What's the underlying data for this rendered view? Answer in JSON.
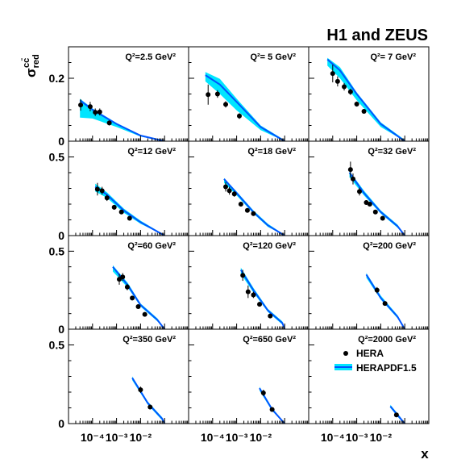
{
  "figure": {
    "title": "H1 and ZEUS",
    "xlabel": "x",
    "ylabel_main": "σ",
    "ylabel_sub": "red",
    "ylabel_sup": "cc̄"
  },
  "colors": {
    "band": "#00e5ff",
    "curve": "#0055ff",
    "points": "#000000"
  },
  "legend": {
    "position": "bottom-right panel",
    "entries": [
      {
        "label": "HERA",
        "kind": "marker"
      },
      {
        "label": "HERAPDF1.5",
        "kind": "band"
      }
    ]
  },
  "chart_data": [
    {
      "type": "scatter",
      "title": "Q²=2.5 GeV²",
      "q2": "2.5",
      "xlog": true,
      "xlim": [
        1e-05,
        1
      ],
      "ylim": [
        0,
        0.3
      ],
      "yticks": [
        0,
        0.2
      ],
      "ytick_labels": [
        "0",
        "0.2"
      ],
      "xtick_labels": [],
      "points": [
        {
          "x": 3.2e-05,
          "y": 0.115,
          "err": 0.018
        },
        {
          "x": 8e-05,
          "y": 0.11,
          "err": 0.015
        },
        {
          "x": 0.00013,
          "y": 0.092,
          "err": 0.012
        },
        {
          "x": 0.0002,
          "y": 0.093,
          "err": 0.011
        },
        {
          "x": 0.0005,
          "y": 0.058,
          "err": 0.008
        }
      ],
      "curve": [
        [
          3e-05,
          0.13
        ],
        [
          0.0001,
          0.1
        ],
        [
          0.001,
          0.055
        ],
        [
          0.01,
          0.018
        ],
        [
          0.1,
          0.0
        ]
      ],
      "band": [
        [
          3e-05,
          0.075,
          0.135
        ],
        [
          0.0001,
          0.072,
          0.104
        ],
        [
          0.001,
          0.045,
          0.058
        ],
        [
          0.01,
          0.015,
          0.02
        ],
        [
          0.1,
          0.0,
          0.002
        ]
      ]
    },
    {
      "type": "scatter",
      "title": "Q²= 5 GeV²",
      "q2": "5",
      "xlog": true,
      "xlim": [
        1e-05,
        1
      ],
      "ylim": [
        0,
        0.3
      ],
      "yticks": [
        0,
        0.2
      ],
      "ytick_labels": [],
      "xtick_labels": [],
      "points": [
        {
          "x": 6.5e-05,
          "y": 0.148,
          "err": 0.032
        },
        {
          "x": 0.00016,
          "y": 0.15,
          "err": 0.012
        },
        {
          "x": 0.00035,
          "y": 0.117,
          "err": 0.01
        },
        {
          "x": 0.0013,
          "y": 0.08,
          "err": 0.009
        }
      ],
      "curve": [
        [
          5e-05,
          0.21
        ],
        [
          0.0002,
          0.18
        ],
        [
          0.001,
          0.125
        ],
        [
          0.01,
          0.045
        ],
        [
          0.1,
          0.0
        ]
      ],
      "band": [
        [
          5e-05,
          0.19,
          0.22
        ],
        [
          0.0002,
          0.15,
          0.198
        ],
        [
          0.001,
          0.098,
          0.135
        ],
        [
          0.01,
          0.035,
          0.05
        ],
        [
          0.1,
          0.0,
          0.003
        ]
      ]
    },
    {
      "type": "scatter",
      "title": "Q²= 7 GeV²",
      "q2": "7",
      "xlog": true,
      "xlim": [
        1e-05,
        1
      ],
      "ylim": [
        0,
        0.3
      ],
      "yticks": [
        0,
        0.2
      ],
      "ytick_labels": [],
      "xtick_labels": [],
      "points": [
        {
          "x": 0.0001,
          "y": 0.215,
          "err": 0.028
        },
        {
          "x": 0.00016,
          "y": 0.19,
          "err": 0.016
        },
        {
          "x": 0.0003,
          "y": 0.173,
          "err": 0.012
        },
        {
          "x": 0.00055,
          "y": 0.157,
          "err": 0.01
        },
        {
          "x": 0.001,
          "y": 0.118,
          "err": 0.008
        },
        {
          "x": 0.002,
          "y": 0.095,
          "err": 0.007
        }
      ],
      "curve": [
        [
          6e-05,
          0.26
        ],
        [
          0.0002,
          0.225
        ],
        [
          0.001,
          0.15
        ],
        [
          0.01,
          0.055
        ],
        [
          0.1,
          0.0
        ]
      ],
      "band": [
        [
          6e-05,
          0.24,
          0.265
        ],
        [
          0.0002,
          0.2,
          0.235
        ],
        [
          0.001,
          0.13,
          0.155
        ],
        [
          0.01,
          0.045,
          0.06
        ],
        [
          0.1,
          0.0,
          0.004
        ]
      ]
    },
    {
      "type": "scatter",
      "title": "Q²=12 GeV²",
      "q2": "12",
      "xlog": true,
      "xlim": [
        1e-05,
        1
      ],
      "ylim": [
        0,
        0.6
      ],
      "yticks": [
        0,
        0.5
      ],
      "ytick_labels": [
        "0",
        "0.5"
      ],
      "xtick_labels": [],
      "points": [
        {
          "x": 0.00016,
          "y": 0.295,
          "err": 0.04
        },
        {
          "x": 0.00025,
          "y": 0.285,
          "err": 0.025
        },
        {
          "x": 0.0004,
          "y": 0.24,
          "err": 0.02
        },
        {
          "x": 0.0008,
          "y": 0.18,
          "err": 0.015
        },
        {
          "x": 0.0016,
          "y": 0.15,
          "err": 0.012
        },
        {
          "x": 0.0035,
          "y": 0.11,
          "err": 0.01
        }
      ],
      "curve": [
        [
          0.00013,
          0.31
        ],
        [
          0.0004,
          0.26
        ],
        [
          0.002,
          0.16
        ],
        [
          0.01,
          0.085
        ],
        [
          0.1,
          0.0
        ]
      ],
      "band": [
        [
          0.00013,
          0.28,
          0.33
        ],
        [
          0.0004,
          0.24,
          0.275
        ],
        [
          0.002,
          0.145,
          0.172
        ],
        [
          0.01,
          0.075,
          0.095
        ],
        [
          0.1,
          0.0,
          0.004
        ]
      ]
    },
    {
      "type": "scatter",
      "title": "Q²=18 GeV²",
      "q2": "18",
      "xlog": true,
      "xlim": [
        1e-05,
        1
      ],
      "ylim": [
        0,
        0.6
      ],
      "yticks": [
        0,
        0.5
      ],
      "ytick_labels": [],
      "xtick_labels": [],
      "points": [
        {
          "x": 0.00035,
          "y": 0.31,
          "err": 0.03
        },
        {
          "x": 0.0005,
          "y": 0.285,
          "err": 0.025
        },
        {
          "x": 0.0008,
          "y": 0.265,
          "err": 0.018
        },
        {
          "x": 0.0015,
          "y": 0.2,
          "err": 0.015
        },
        {
          "x": 0.0028,
          "y": 0.16,
          "err": 0.012
        },
        {
          "x": 0.005,
          "y": 0.14,
          "err": 0.01
        }
      ],
      "curve": [
        [
          0.0003,
          0.36
        ],
        [
          0.001,
          0.27
        ],
        [
          0.005,
          0.15
        ],
        [
          0.02,
          0.065
        ],
        [
          0.1,
          0.0
        ]
      ],
      "band": [
        [
          0.0003,
          0.335,
          0.365
        ],
        [
          0.001,
          0.255,
          0.28
        ],
        [
          0.005,
          0.14,
          0.16
        ],
        [
          0.02,
          0.055,
          0.075
        ],
        [
          0.1,
          0.0,
          0.004
        ]
      ]
    },
    {
      "type": "scatter",
      "title": "Q²=32 GeV²",
      "q2": "32",
      "xlog": true,
      "xlim": [
        1e-05,
        1
      ],
      "ylim": [
        0,
        0.6
      ],
      "yticks": [
        0,
        0.5
      ],
      "ytick_labels": [],
      "xtick_labels": [],
      "points": [
        {
          "x": 0.00055,
          "y": 0.42,
          "err": 0.05
        },
        {
          "x": 0.0007,
          "y": 0.36,
          "err": 0.035
        },
        {
          "x": 0.0013,
          "y": 0.28,
          "err": 0.025
        },
        {
          "x": 0.0025,
          "y": 0.21,
          "err": 0.015
        },
        {
          "x": 0.0035,
          "y": 0.2,
          "err": 0.012
        },
        {
          "x": 0.006,
          "y": 0.15,
          "err": 0.01
        },
        {
          "x": 0.012,
          "y": 0.11,
          "err": 0.009
        }
      ],
      "curve": [
        [
          0.0005,
          0.4
        ],
        [
          0.002,
          0.27
        ],
        [
          0.01,
          0.15
        ],
        [
          0.05,
          0.06
        ],
        [
          0.1,
          0.0
        ]
      ],
      "band": [
        [
          0.0005,
          0.37,
          0.41
        ],
        [
          0.002,
          0.255,
          0.285
        ],
        [
          0.01,
          0.14,
          0.16
        ],
        [
          0.05,
          0.05,
          0.07
        ],
        [
          0.1,
          0.0,
          0.004
        ]
      ]
    },
    {
      "type": "scatter",
      "title": "Q²=60 GeV²",
      "q2": "60",
      "xlog": true,
      "xlim": [
        1e-05,
        1
      ],
      "ylim": [
        0,
        0.6
      ],
      "yticks": [
        0,
        0.5
      ],
      "ytick_labels": [
        "0",
        "0.5"
      ],
      "xtick_labels": [],
      "points": [
        {
          "x": 0.0013,
          "y": 0.32,
          "err": 0.035
        },
        {
          "x": 0.0018,
          "y": 0.335,
          "err": 0.025
        },
        {
          "x": 0.0028,
          "y": 0.27,
          "err": 0.02
        },
        {
          "x": 0.0045,
          "y": 0.2,
          "err": 0.015
        },
        {
          "x": 0.008,
          "y": 0.145,
          "err": 0.012
        },
        {
          "x": 0.015,
          "y": 0.095,
          "err": 0.009
        }
      ],
      "curve": [
        [
          0.0007,
          0.4
        ],
        [
          0.003,
          0.28
        ],
        [
          0.01,
          0.155
        ],
        [
          0.05,
          0.06
        ],
        [
          0.1,
          0.0
        ]
      ],
      "band": [
        [
          0.0007,
          0.37,
          0.41
        ],
        [
          0.003,
          0.265,
          0.295
        ],
        [
          0.01,
          0.145,
          0.165
        ],
        [
          0.05,
          0.05,
          0.07
        ],
        [
          0.1,
          0.0,
          0.004
        ]
      ]
    },
    {
      "type": "scatter",
      "title": "Q²=120 GeV²",
      "q2": "120",
      "xlog": true,
      "xlim": [
        1e-05,
        1
      ],
      "ylim": [
        0,
        0.6
      ],
      "yticks": [
        0,
        0.5
      ],
      "ytick_labels": [],
      "xtick_labels": [],
      "points": [
        {
          "x": 0.0018,
          "y": 0.345,
          "err": 0.035
        },
        {
          "x": 0.003,
          "y": 0.24,
          "err": 0.04
        },
        {
          "x": 0.005,
          "y": 0.22,
          "err": 0.02
        },
        {
          "x": 0.009,
          "y": 0.16,
          "err": 0.015
        },
        {
          "x": 0.025,
          "y": 0.085,
          "err": 0.009
        }
      ],
      "curve": [
        [
          0.0015,
          0.38
        ],
        [
          0.005,
          0.25
        ],
        [
          0.02,
          0.12
        ],
        [
          0.08,
          0.04
        ],
        [
          0.1,
          0.0
        ]
      ],
      "band": [
        [
          0.0015,
          0.355,
          0.395
        ],
        [
          0.005,
          0.235,
          0.265
        ],
        [
          0.02,
          0.11,
          0.13
        ],
        [
          0.08,
          0.03,
          0.05
        ],
        [
          0.1,
          0.0,
          0.004
        ]
      ]
    },
    {
      "type": "scatter",
      "title": "Q²=200 GeV²",
      "q2": "200",
      "xlog": true,
      "xlim": [
        1e-05,
        1
      ],
      "ylim": [
        0,
        0.6
      ],
      "yticks": [
        0,
        0.5
      ],
      "ytick_labels": [],
      "xtick_labels": [],
      "points": [
        {
          "x": 0.007,
          "y": 0.25,
          "err": 0.02
        },
        {
          "x": 0.015,
          "y": 0.165,
          "err": 0.012
        }
      ],
      "curve": [
        [
          0.0025,
          0.35
        ],
        [
          0.01,
          0.2
        ],
        [
          0.05,
          0.08
        ],
        [
          0.1,
          0.0
        ]
      ],
      "band": [
        [
          0.0025,
          0.33,
          0.36
        ],
        [
          0.01,
          0.19,
          0.215
        ],
        [
          0.05,
          0.07,
          0.09
        ],
        [
          0.1,
          0.0,
          0.004
        ]
      ]
    },
    {
      "type": "scatter",
      "title": "Q²=350 GeV²",
      "q2": "350",
      "xlog": true,
      "xlim": [
        1e-05,
        1
      ],
      "ylim": [
        0,
        0.6
      ],
      "yticks": [
        0,
        0.5
      ],
      "ytick_labels": [
        "0",
        "0.5"
      ],
      "xtick_labels": [
        "10⁻⁴",
        "10⁻³",
        "10⁻²"
      ],
      "points": [
        {
          "x": 0.01,
          "y": 0.215,
          "err": 0.02
        },
        {
          "x": 0.025,
          "y": 0.105,
          "err": 0.01
        }
      ],
      "curve": [
        [
          0.0045,
          0.29
        ],
        [
          0.02,
          0.13
        ],
        [
          0.08,
          0.03
        ],
        [
          0.1,
          0.0
        ]
      ],
      "band": [
        [
          0.0045,
          0.275,
          0.3
        ],
        [
          0.02,
          0.12,
          0.14
        ],
        [
          0.08,
          0.02,
          0.04
        ],
        [
          0.1,
          0.0,
          0.004
        ]
      ]
    },
    {
      "type": "scatter",
      "title": "Q²=650 GeV²",
      "q2": "650",
      "xlog": true,
      "xlim": [
        1e-05,
        1
      ],
      "ylim": [
        0,
        0.6
      ],
      "yticks": [
        0,
        0.5
      ],
      "ytick_labels": [],
      "xtick_labels": [
        "10⁻⁴",
        "10⁻³",
        "10⁻²"
      ],
      "points": [
        {
          "x": 0.013,
          "y": 0.195,
          "err": 0.02
        },
        {
          "x": 0.03,
          "y": 0.09,
          "err": 0.01
        }
      ],
      "curve": [
        [
          0.009,
          0.225
        ],
        [
          0.03,
          0.09
        ],
        [
          0.1,
          0.0
        ]
      ],
      "band": [
        [
          0.009,
          0.21,
          0.235
        ],
        [
          0.03,
          0.08,
          0.1
        ],
        [
          0.1,
          0.0,
          0.004
        ]
      ]
    },
    {
      "type": "scatter",
      "title": "Q²=2000 GeV²",
      "q2": "2000",
      "xlog": true,
      "xlim": [
        1e-05,
        1
      ],
      "ylim": [
        0,
        0.6
      ],
      "yticks": [
        0,
        0.5
      ],
      "ytick_labels": [],
      "xtick_labels": [
        "10⁻⁴",
        "10⁻³",
        "10⁻²"
      ],
      "points": [
        {
          "x": 0.045,
          "y": 0.055,
          "err": 0.008
        }
      ],
      "curve": [
        [
          0.025,
          0.11
        ],
        [
          0.06,
          0.04
        ],
        [
          0.1,
          0.0
        ]
      ],
      "band": [
        [
          0.025,
          0.1,
          0.12
        ],
        [
          0.06,
          0.03,
          0.05
        ],
        [
          0.1,
          0.0,
          0.004
        ]
      ]
    }
  ]
}
